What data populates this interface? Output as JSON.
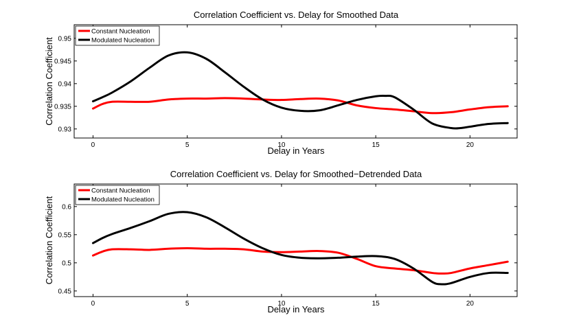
{
  "chart_data": [
    {
      "type": "line",
      "title": "Correlation Coefficient vs. Delay for Smoothed Data",
      "xlabel": "Delay in Years",
      "ylabel": "Correlation Coefficient",
      "xlim": [
        -1,
        22.5
      ],
      "ylim": [
        0.928,
        0.953
      ],
      "xticks": [
        0,
        5,
        10,
        15,
        20
      ],
      "yticks": [
        0.93,
        0.935,
        0.94,
        0.945,
        0.95
      ],
      "ytick_labels": [
        "0.93",
        "0.935",
        "0.94",
        "0.945",
        "0.95"
      ],
      "grid": false,
      "legend_position": "top-left",
      "series": [
        {
          "name": "Constant Nucleation",
          "color": "#ff0000",
          "x": [
            0,
            0.5,
            1,
            2,
            3,
            4,
            5,
            6,
            7,
            8,
            9,
            10,
            11,
            12,
            13,
            14,
            15,
            16,
            17,
            18,
            19,
            20,
            21,
            22
          ],
          "y": [
            0.9345,
            0.9355,
            0.936,
            0.936,
            0.936,
            0.9365,
            0.9367,
            0.9367,
            0.9368,
            0.9367,
            0.9365,
            0.9364,
            0.9366,
            0.9367,
            0.9363,
            0.9352,
            0.9346,
            0.9343,
            0.9339,
            0.9335,
            0.9337,
            0.9343,
            0.9348,
            0.935
          ]
        },
        {
          "name": "Modulated Nucleation",
          "color": "#000000",
          "x": [
            0,
            0.5,
            1,
            2,
            3,
            4,
            5,
            6,
            7,
            8,
            9,
            10,
            11,
            12,
            13,
            14,
            15,
            15.5,
            16,
            17,
            18,
            19,
            19.5,
            20,
            21,
            22
          ],
          "y": [
            0.9361,
            0.937,
            0.938,
            0.9405,
            0.9435,
            0.9462,
            0.9469,
            0.9455,
            0.9425,
            0.9393,
            0.9365,
            0.9347,
            0.934,
            0.9341,
            0.9352,
            0.9364,
            0.9372,
            0.9373,
            0.937,
            0.9343,
            0.9312,
            0.9302,
            0.9302,
            0.9305,
            0.9311,
            0.9313
          ]
        }
      ]
    },
    {
      "type": "line",
      "title": "Correlation Coefficient vs. Delay for Smoothed−Detrended Data",
      "xlabel": "Delay in Years",
      "ylabel": "Correlation Coefficient",
      "xlim": [
        -1,
        22.5
      ],
      "ylim": [
        0.44,
        0.64
      ],
      "xticks": [
        0,
        5,
        10,
        15,
        20
      ],
      "yticks": [
        0.45,
        0.5,
        0.55,
        0.6
      ],
      "ytick_labels": [
        "0.45",
        "0.5",
        "0.55",
        "0.6"
      ],
      "grid": false,
      "legend_position": "top-left",
      "series": [
        {
          "name": "Constant Nucleation",
          "color": "#ff0000",
          "x": [
            0,
            0.5,
            1,
            2,
            3,
            4,
            5,
            6,
            7,
            8,
            9,
            10,
            11,
            12,
            13,
            14,
            15,
            16,
            17,
            18,
            18.5,
            19,
            20,
            21,
            22
          ],
          "y": [
            0.513,
            0.52,
            0.524,
            0.524,
            0.523,
            0.525,
            0.526,
            0.525,
            0.525,
            0.524,
            0.52,
            0.519,
            0.52,
            0.521,
            0.518,
            0.507,
            0.494,
            0.49,
            0.487,
            0.482,
            0.481,
            0.482,
            0.49,
            0.496,
            0.502
          ]
        },
        {
          "name": "Modulated Nucleation",
          "color": "#000000",
          "x": [
            0,
            0.5,
            1,
            2,
            3,
            4,
            5,
            6,
            7,
            8,
            9,
            10,
            11,
            12,
            13,
            14,
            15,
            16,
            17,
            18,
            18.5,
            19,
            20,
            21,
            22
          ],
          "y": [
            0.535,
            0.544,
            0.551,
            0.562,
            0.574,
            0.587,
            0.59,
            0.581,
            0.563,
            0.543,
            0.526,
            0.514,
            0.509,
            0.508,
            0.509,
            0.511,
            0.512,
            0.507,
            0.49,
            0.466,
            0.462,
            0.464,
            0.475,
            0.482,
            0.482
          ]
        }
      ]
    }
  ]
}
